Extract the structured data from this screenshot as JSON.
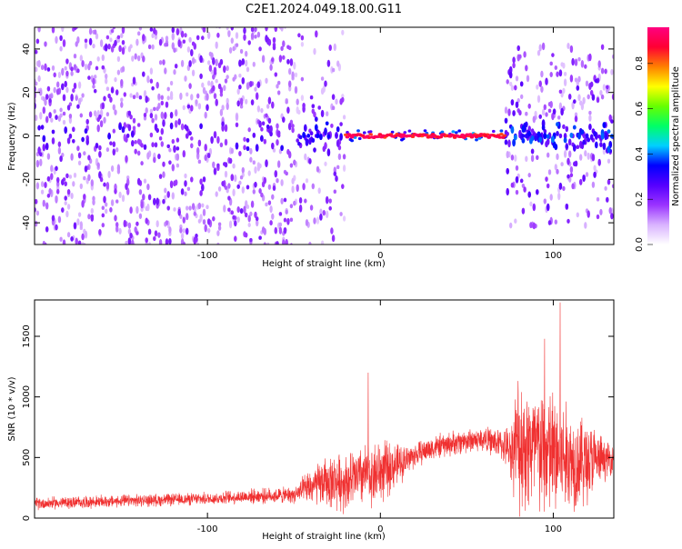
{
  "chart_data": [
    {
      "type": "heatmap",
      "title": "C2E1.2024.049.18.00.G11",
      "xlabel": "Height of straight line (km)",
      "ylabel": "Frequency (Hz)",
      "xlim": [
        -200,
        135
      ],
      "ylim": [
        -50,
        50
      ],
      "x_ticks": [
        -100,
        0,
        100
      ],
      "y_ticks": [
        -40,
        -20,
        0,
        20,
        40
      ],
      "colorbar": {
        "label": "Normalized spectral amplitude",
        "range": [
          0,
          1
        ],
        "ticks": [
          "0.0",
          "0.2",
          "0.4",
          "0.6",
          "0.8"
        ],
        "colormap": [
          "#ffffff",
          "#d9b3ff",
          "#9a33ff",
          "#5500ff",
          "#0000ff",
          "#00d0ff",
          "#00ff66",
          "#66ff00",
          "#ffff00",
          "#ff8000",
          "#ff0033",
          "#ff0080"
        ]
      },
      "regions": [
        {
          "x_range": [
            -200,
            -50
          ],
          "pattern": "noisy scatter across full frequency band"
        },
        {
          "x_range": [
            -50,
            -20
          ],
          "pattern": "scatter concentrated near 0 Hz"
        },
        {
          "x_range": [
            -20,
            72
          ],
          "pattern": "narrow high-amplitude line at 0 Hz"
        },
        {
          "x_range": [
            72,
            135
          ],
          "pattern": "broadened scatter around 0 Hz, within about ±40 Hz"
        }
      ]
    },
    {
      "type": "line",
      "xlabel": "Height of straight line (km)",
      "ylabel": "SNR (10 * v/v)",
      "xlim": [
        -200,
        135
      ],
      "ylim": [
        0,
        1800
      ],
      "x_ticks": [
        -100,
        0,
        100
      ],
      "y_ticks": [
        0,
        500,
        1000,
        1500
      ],
      "series": [
        {
          "color": "#f03030",
          "x": [
            -200,
            -150,
            -100,
            -75,
            -50,
            -40,
            -30,
            -20,
            -10,
            0,
            10,
            20,
            30,
            40,
            50,
            60,
            70,
            75,
            80,
            85,
            90,
            100,
            110,
            120,
            130,
            135
          ],
          "mean": [
            120,
            140,
            160,
            180,
            190,
            260,
            300,
            300,
            350,
            380,
            440,
            520,
            580,
            610,
            640,
            650,
            610,
            560,
            620,
            600,
            560,
            520,
            480,
            470,
            480,
            500
          ],
          "spread": [
            60,
            60,
            60,
            70,
            80,
            180,
            250,
            280,
            300,
            320,
            200,
            120,
            120,
            120,
            120,
            120,
            150,
            230,
            700,
            650,
            650,
            650,
            500,
            430,
            180,
            150
          ],
          "peaks": [
            {
              "x": -7,
              "y": 1200
            },
            {
              "x": 104,
              "y": 1780
            },
            {
              "x": 95,
              "y": 1480
            }
          ]
        }
      ]
    }
  ],
  "colors": {
    "background": "#ffffff",
    "snr_line": "#f03030",
    "axis": "#000000"
  }
}
